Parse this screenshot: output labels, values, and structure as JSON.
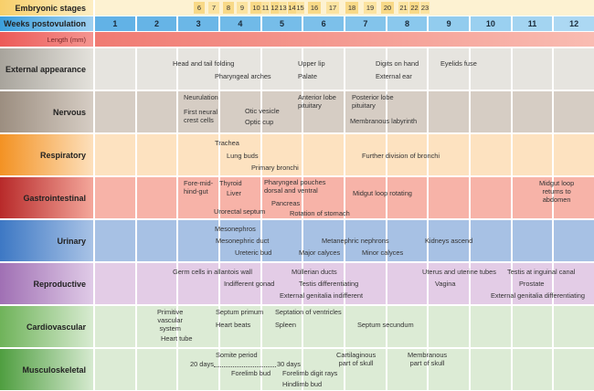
{
  "header": {
    "stages_label": "Embryonic stages",
    "stages": [
      "6",
      "7",
      "8",
      "9",
      "10",
      "11",
      "12",
      "13",
      "14",
      "15",
      "16",
      "17",
      "18",
      "19",
      "20",
      "21",
      "22",
      "23"
    ],
    "weeks_label": "Weeks postovulation",
    "weeks": [
      "1",
      "2",
      "3",
      "4",
      "5",
      "6",
      "7",
      "8",
      "9",
      "10",
      "11",
      "12"
    ],
    "length_label": "Length (mm)"
  },
  "bands": [
    {
      "label": "External appearance",
      "items": [
        "Head and tail folding",
        "Pharyngeal arches",
        "Upper lip",
        "Palate",
        "Digits on hand",
        "External ear",
        "Eyelids fuse"
      ]
    },
    {
      "label": "Nervous",
      "items": [
        "Neurulation",
        "First neural\n  crest cells",
        "Otic vesicle",
        "Optic cup",
        "Anterior lobe\n  pituitary",
        "Posterior lobe\n  pituitary",
        "Membranous labyrinth"
      ]
    },
    {
      "label": "Respiratory",
      "items": [
        "Trachea",
        "Lung buds",
        "Primary bronchi",
        "Further division of bronchi"
      ]
    },
    {
      "label": "Gastrointestinal",
      "items": [
        "Fore-mid-\nhind-gut",
        "Thyroid",
        "Liver",
        "Urorectal septum",
        "Pharyngeal pouches\ndorsal and ventral",
        "Pancreas",
        "Rotation of stomach",
        "Midgut loop rotating",
        "Midgut loop\nreturns to\nabdomen"
      ]
    },
    {
      "label": "Urinary",
      "items": [
        "Mesonephros",
        "Mesonephric duct",
        "Ureteric bud",
        "Major calyces",
        "Metanephric nephrons",
        "Minor calyces",
        "Kidneys ascend"
      ]
    },
    {
      "label": "Reproductive",
      "items": [
        "Germ cells in allantois wall",
        "Indifferent gonad",
        "Müllerian ducts",
        "Testis differentiating",
        "External genitalia indifferent",
        "Uterus and uterine tubes",
        "Vagina",
        "Testis at inguinal canal",
        "Prostate",
        "External genitalia differentiating"
      ]
    },
    {
      "label": "Cardiovascular",
      "items": [
        "Primitive\nvascular\nsystem",
        "Heart tube",
        "Septum primum",
        "Heart beats",
        "Septation of ventricles",
        "Spleen",
        "Septum secundum"
      ]
    },
    {
      "label": "Musculoskeletal",
      "items": [
        "Somite period",
        "20 days",
        "30 days",
        "Forelimb bud",
        "Forelimb digit rays",
        "Hindlimb bud",
        "Cartilaginous\npart of skull",
        "Membranous\npart of skull"
      ]
    }
  ],
  "colors": {
    "weeks": "#5aaee3",
    "length": "#f07a72",
    "stages": "#f9d680"
  }
}
